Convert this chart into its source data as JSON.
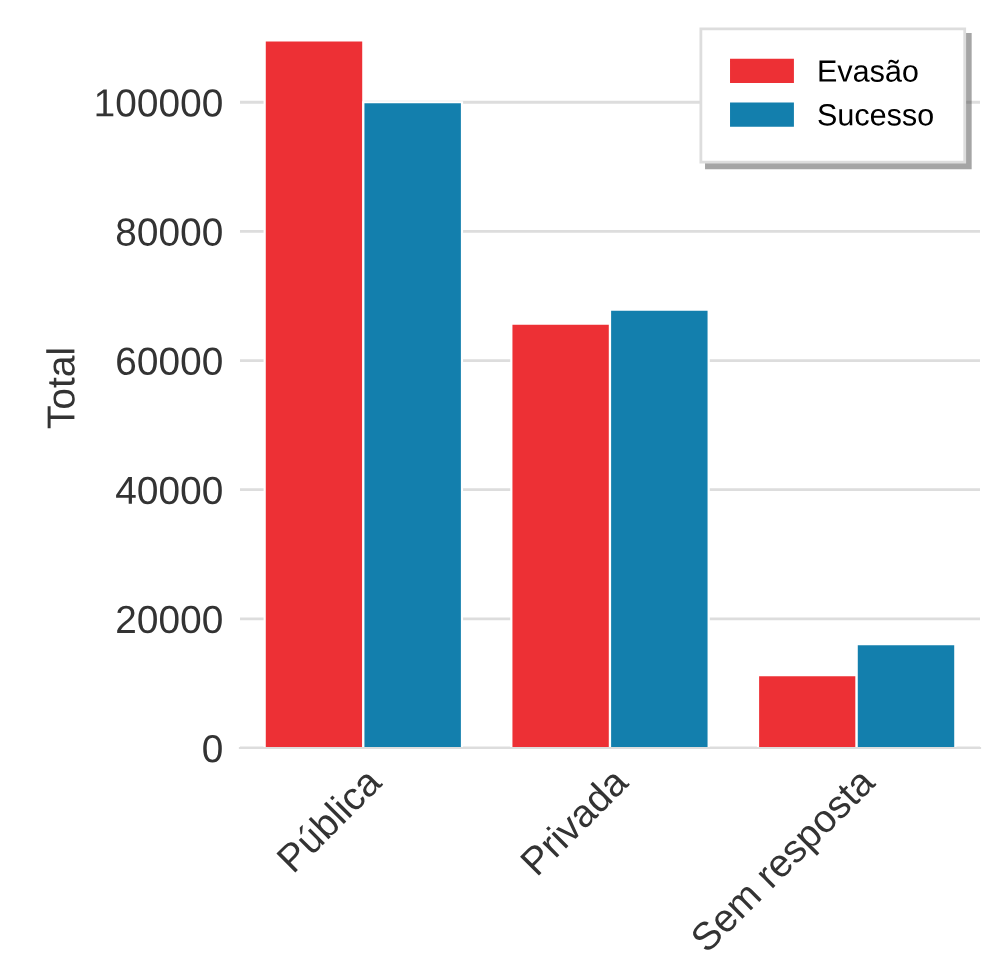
{
  "chart_data": {
    "type": "bar",
    "ylabel": "Total",
    "categories": [
      "Pública",
      "Privada",
      "Sem resposta"
    ],
    "series": [
      {
        "name": "Evasão",
        "color": "#ed3035",
        "values": [
          109600,
          65700,
          11300
        ]
      },
      {
        "name": "Sucesso",
        "color": "#137fad",
        "values": [
          100000,
          67900,
          16100
        ]
      }
    ],
    "ylim": [
      0,
      111500
    ],
    "yticks": [
      0,
      20000,
      40000,
      60000,
      80000,
      100000
    ],
    "grid": "y",
    "legend": "top right"
  }
}
